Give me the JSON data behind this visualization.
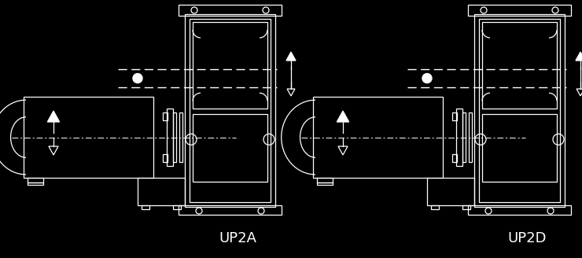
{
  "bg_color": "#000000",
  "line_color": "#ffffff",
  "label_UP2A": "UP2A",
  "label_UP2D": "UP2D",
  "label_fontsize": 13,
  "fig_width": 7.4,
  "fig_height": 3.28,
  "dpi": 100
}
